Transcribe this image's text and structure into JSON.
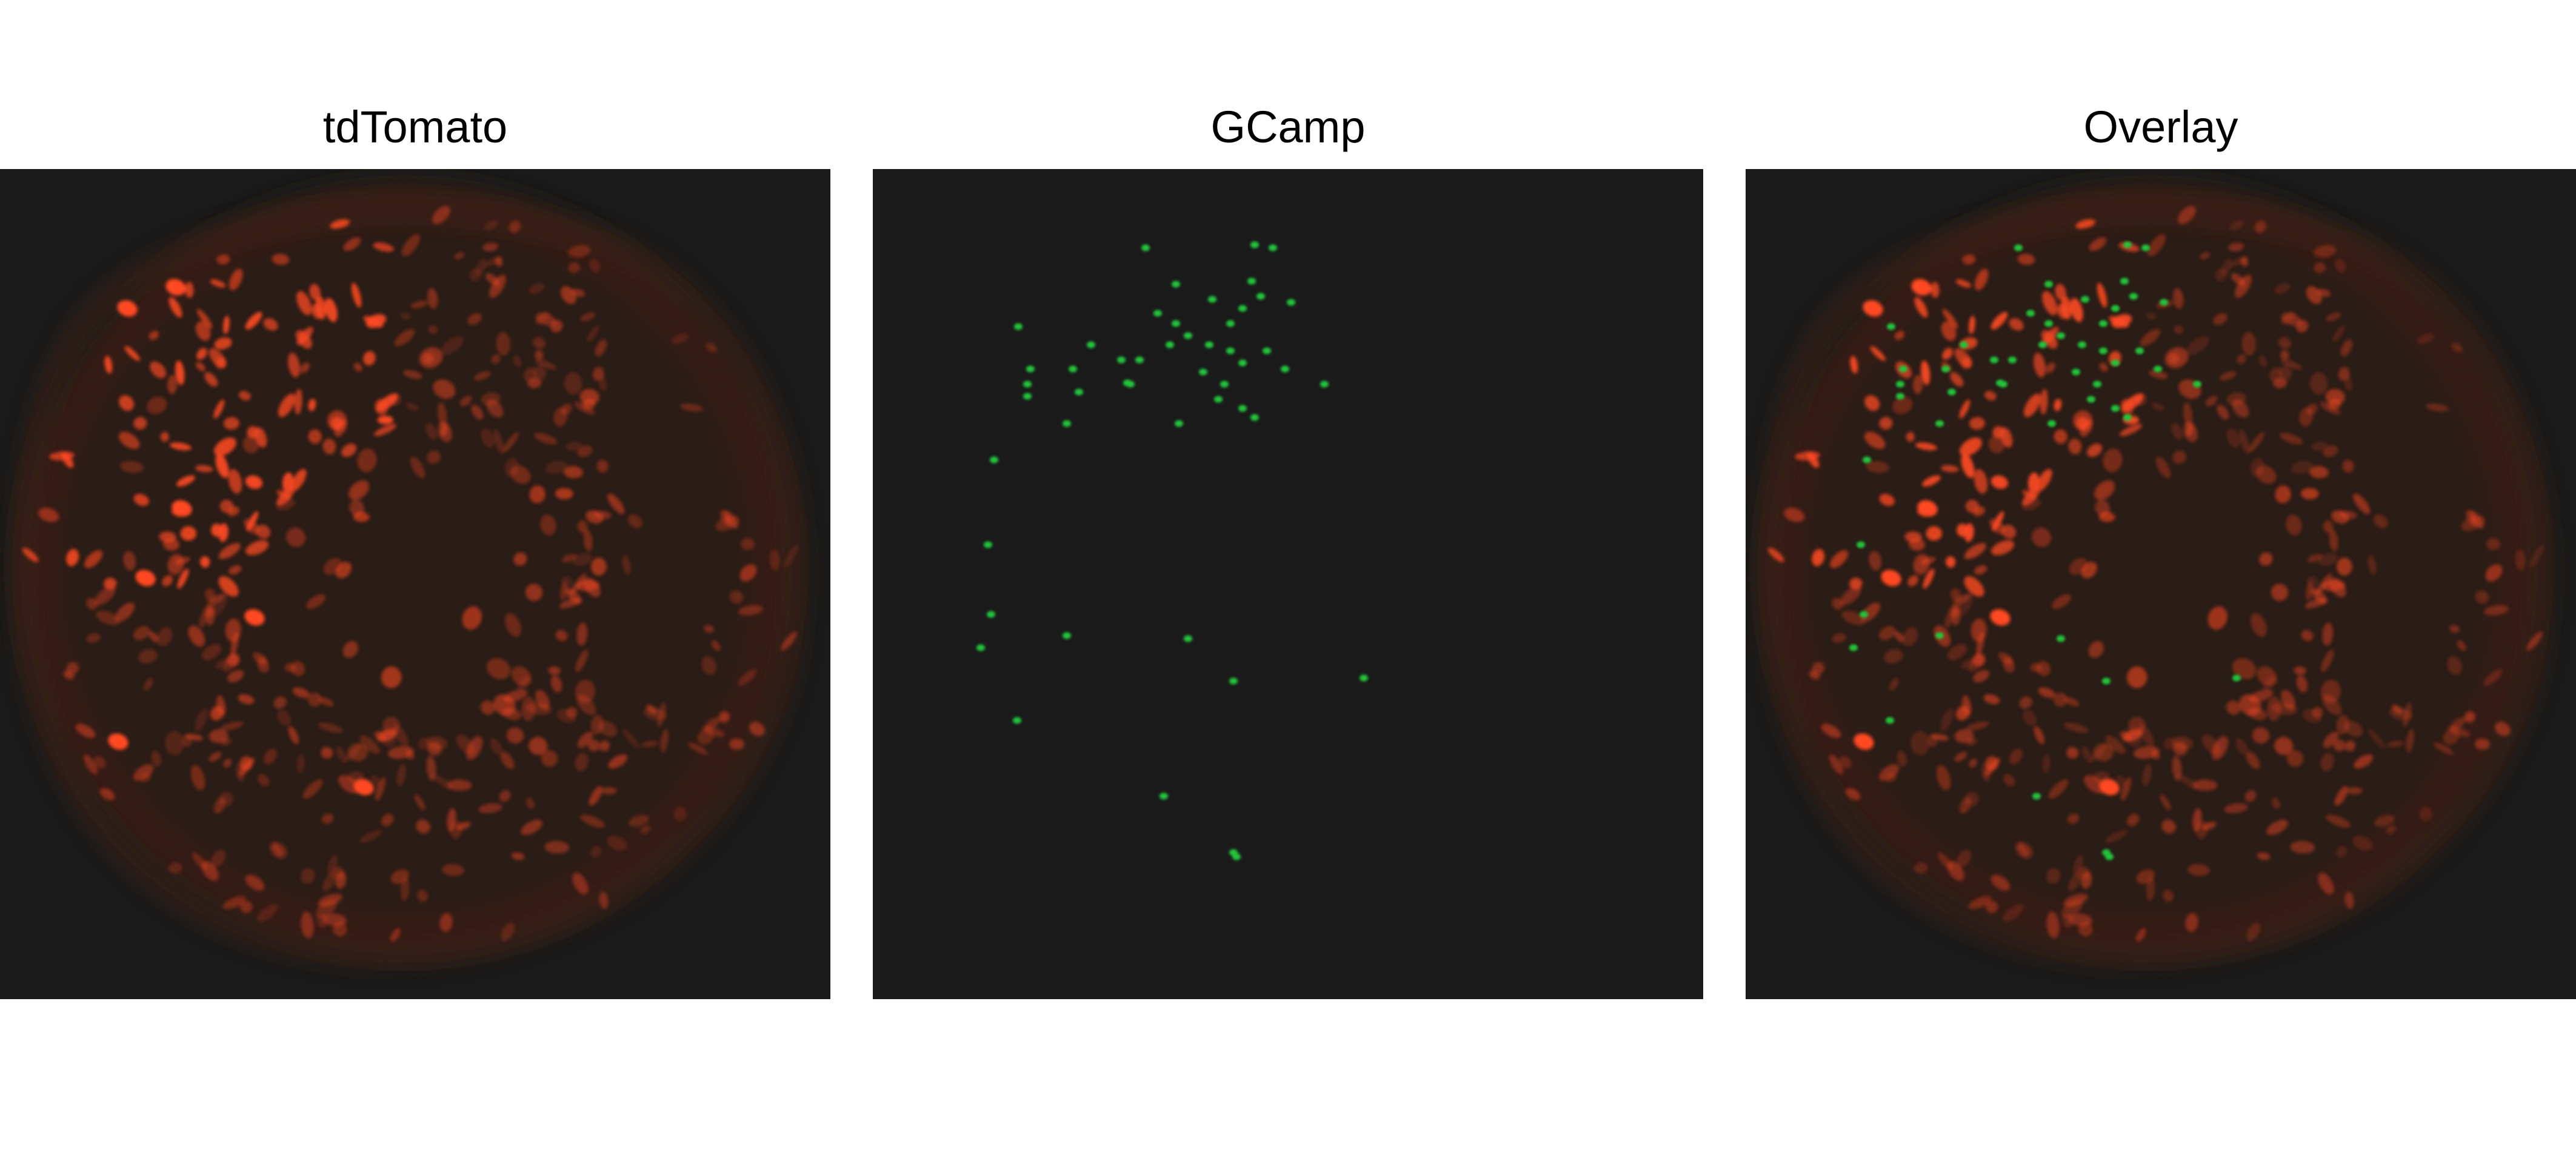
{
  "figure": {
    "panels": [
      {
        "title": "tdTomato",
        "channel": "red",
        "color": "#ff4a22"
      },
      {
        "title": "GCamp",
        "channel": "green",
        "color": "#22c43a"
      },
      {
        "title": "Overlay",
        "channel": "merge",
        "color": "#ffd040"
      }
    ],
    "background_color": "#1a1a1a"
  }
}
